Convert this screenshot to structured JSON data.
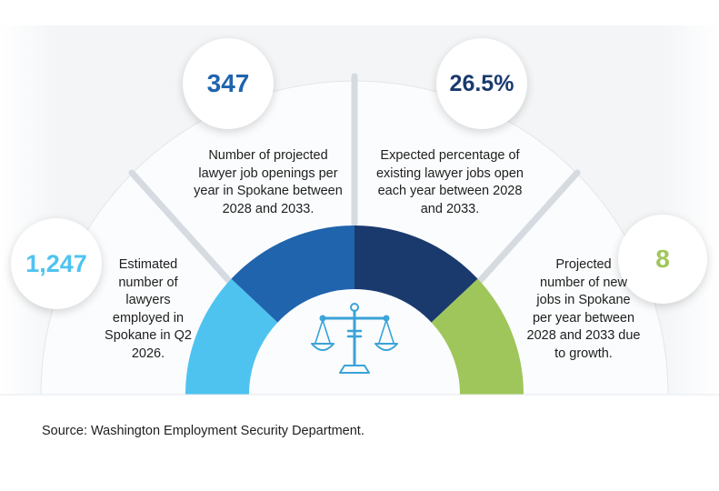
{
  "stats": [
    {
      "value": "1,247",
      "color": "#4fc3f0",
      "description": "Estimated\nnumber of\nlawyers\nemployed in\nSpokane in Q2\n2026."
    },
    {
      "value": "347",
      "color": "#1f64ad",
      "description": "Number of projected\nlawyer job openings per\nyear in Spokane between\n2028 and 2033."
    },
    {
      "value": "26.5%",
      "color": "#1a3a6e",
      "description": "Expected percentage of\nexisting lawyer jobs open\neach year between 2028\nand 2033."
    },
    {
      "value": "8",
      "color": "#9fc65a",
      "description": "Projected\nnumber of new\njobs in Spokane\nper year between\n2028 and 2033 due\nto growth."
    }
  ],
  "icon": {
    "name": "scales-of-justice-icon",
    "color": "#3aa3d8"
  },
  "source": "Source: Washington Employment Security Department."
}
